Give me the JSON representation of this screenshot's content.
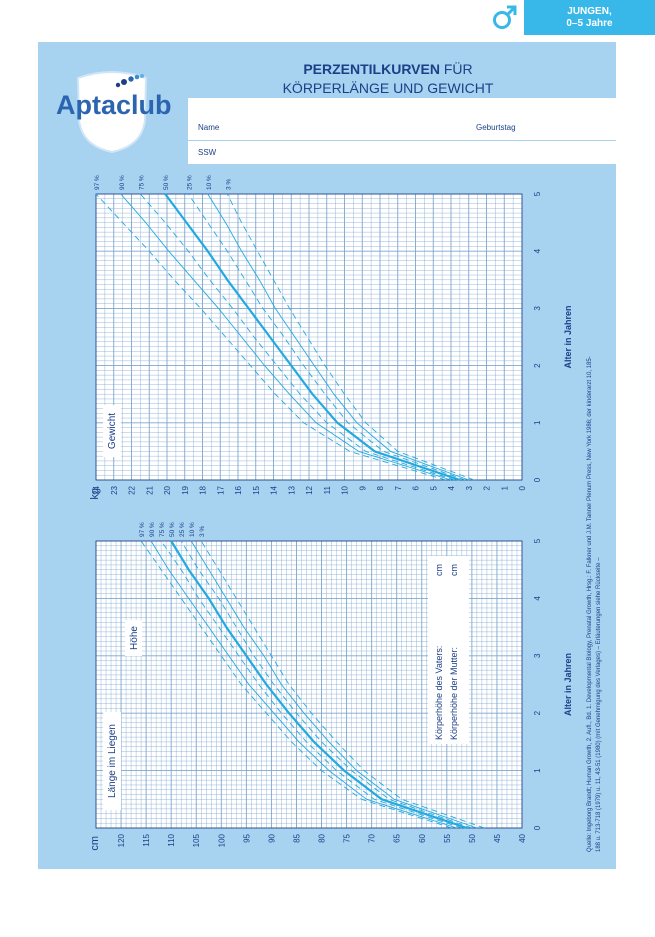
{
  "badge": {
    "line1": "JUNGEN,",
    "line2": "0–5 Jahre"
  },
  "icons": {
    "gender": "male-symbol-icon",
    "logo_shield": "aptaclub-shield-icon"
  },
  "colors": {
    "background": "#a7d2f0",
    "grid": "#7ea6cf",
    "curve": "#22a9e0",
    "text": "#1d3f88",
    "badge": "#38b8e8"
  },
  "header": {
    "logo_text": "Aptaclub",
    "title_bold": "PERZENTILKURVEN",
    "title_rest": "FÜR",
    "title_line2": "KÖRPERLÄNGE UND GEWICHT"
  },
  "form": {
    "name_label": "Name",
    "birthday_label": "Geburtstag",
    "ssw_label": "SSW"
  },
  "chart_data": [
    {
      "type": "line",
      "xlabel": "Alter in Jahren",
      "ylabel": "kg",
      "label_inside": "Gewicht",
      "xlim": [
        0,
        5
      ],
      "ylim": [
        0,
        24
      ],
      "x_ticks": [
        "0",
        "1",
        "2",
        "3",
        "4",
        "5"
      ],
      "y_ticks": [
        "0",
        "1",
        "2",
        "3",
        "4",
        "5",
        "6",
        "7",
        "8",
        "9",
        "10",
        "11",
        "12",
        "13",
        "14",
        "15",
        "16",
        "17",
        "18",
        "19",
        "20",
        "21",
        "22",
        "23",
        "24"
      ],
      "percentile_labels": [
        "97 %",
        "90 %",
        "75 %",
        "50 %",
        "25 %",
        "10 %",
        "3 %"
      ],
      "x": [
        0,
        0.5,
        1,
        1.5,
        2,
        2.5,
        3,
        3.5,
        4,
        4.5,
        5
      ],
      "series": [
        {
          "name": "97 %",
          "style": "dashed",
          "values": [
            4.3,
            9.7,
            12.3,
            13.9,
            15.3,
            16.7,
            18.1,
            19.6,
            21.0,
            22.5,
            24.0
          ]
        },
        {
          "name": "90 %",
          "style": "solid",
          "values": [
            4.0,
            9.2,
            11.6,
            13.1,
            14.5,
            15.8,
            17.1,
            18.5,
            19.9,
            21.2,
            22.6
          ]
        },
        {
          "name": "75 %",
          "style": "dashed",
          "values": [
            3.8,
            8.8,
            11.0,
            12.5,
            13.8,
            15.1,
            16.3,
            17.6,
            18.8,
            20.1,
            21.5
          ]
        },
        {
          "name": "50 %",
          "style": "solid-bold",
          "values": [
            3.5,
            8.3,
            10.4,
            11.8,
            13.0,
            14.2,
            15.4,
            16.6,
            17.7,
            18.9,
            20.1
          ]
        },
        {
          "name": "25 %",
          "style": "dashed",
          "values": [
            3.2,
            7.8,
            9.8,
            11.1,
            12.3,
            13.4,
            14.6,
            15.6,
            16.6,
            17.7,
            18.8
          ]
        },
        {
          "name": "10 %",
          "style": "solid",
          "values": [
            3.0,
            7.4,
            9.3,
            10.6,
            11.7,
            12.8,
            13.9,
            14.8,
            15.8,
            16.7,
            17.7
          ]
        },
        {
          "name": "3 %",
          "style": "dashed",
          "values": [
            2.7,
            7.0,
            8.8,
            10.0,
            11.1,
            12.1,
            13.1,
            14.0,
            14.9,
            15.8,
            16.6
          ]
        }
      ]
    },
    {
      "type": "line",
      "xlabel": "Alter in Jahren",
      "ylabel": "cm",
      "labels_inside": [
        "Länge im Liegen",
        "Höhe"
      ],
      "parent_fields": [
        "Körperhöhe des Vaters:",
        "Körperhöhe der Mutter:"
      ],
      "parent_units": [
        "cm",
        "cm"
      ],
      "xlim": [
        0,
        5
      ],
      "ylim": [
        40,
        125
      ],
      "x_ticks": [
        "0",
        "1",
        "2",
        "3",
        "4",
        "5"
      ],
      "y_ticks": [
        "40",
        "45",
        "50",
        "55",
        "60",
        "65",
        "70",
        "75",
        "80",
        "85",
        "90",
        "95",
        "100",
        "105",
        "110",
        "115",
        "120"
      ],
      "percentile_labels": [
        "97 %",
        "90 %",
        "75 %",
        "50 %",
        "25 %",
        "10 %",
        "3 %"
      ],
      "x": [
        0,
        0.5,
        1,
        1.5,
        2,
        2.5,
        3,
        3.5,
        4,
        4.5,
        5
      ],
      "series": [
        {
          "name": "97 %",
          "style": "dashed",
          "values": [
            54,
            72,
            80,
            86,
            91,
            96,
            100,
            104,
            108,
            112,
            116
          ]
        },
        {
          "name": "90 %",
          "style": "solid",
          "values": [
            53,
            71,
            78.5,
            84.5,
            89.5,
            94.5,
            98.5,
            102.5,
            106.5,
            110.5,
            114
          ]
        },
        {
          "name": "75 %",
          "style": "dashed",
          "values": [
            52,
            69.5,
            77,
            83,
            88,
            92.5,
            96.5,
            100.5,
            104.5,
            108,
            112
          ]
        },
        {
          "name": "50 %",
          "style": "solid-bold",
          "values": [
            51,
            68,
            75.5,
            81.5,
            86.5,
            91,
            95,
            99,
            102.5,
            106.5,
            110
          ]
        },
        {
          "name": "25 %",
          "style": "dashed",
          "values": [
            50,
            66.5,
            74,
            80,
            85,
            89.5,
            93.5,
            97,
            100.5,
            104.5,
            108
          ]
        },
        {
          "name": "10 %",
          "style": "solid",
          "values": [
            49,
            65.5,
            73,
            78.5,
            83.5,
            88,
            91.5,
            95.5,
            99,
            102.5,
            106
          ]
        },
        {
          "name": "3 %",
          "style": "dashed",
          "values": [
            47.5,
            64,
            71.5,
            77,
            82,
            86.5,
            90,
            93.5,
            97,
            100.5,
            104
          ]
        }
      ]
    }
  ],
  "source_text": [
    "Quelle: Ingeborg Brandt; Human Growth, 2. Aufl., Bd. 1. Developmental Biology, Prenatal Growth, Hrsg.: F. Falkner und J.M. Tanner Plenum Press, New York 1986; der kinderarzt 10, 185-",
    "188 u. 713-718 (1979) u. 11, 43-51 (1980) (mit Genehmigung des Verlages) – Erläuterungen siehe Rückseite –"
  ]
}
